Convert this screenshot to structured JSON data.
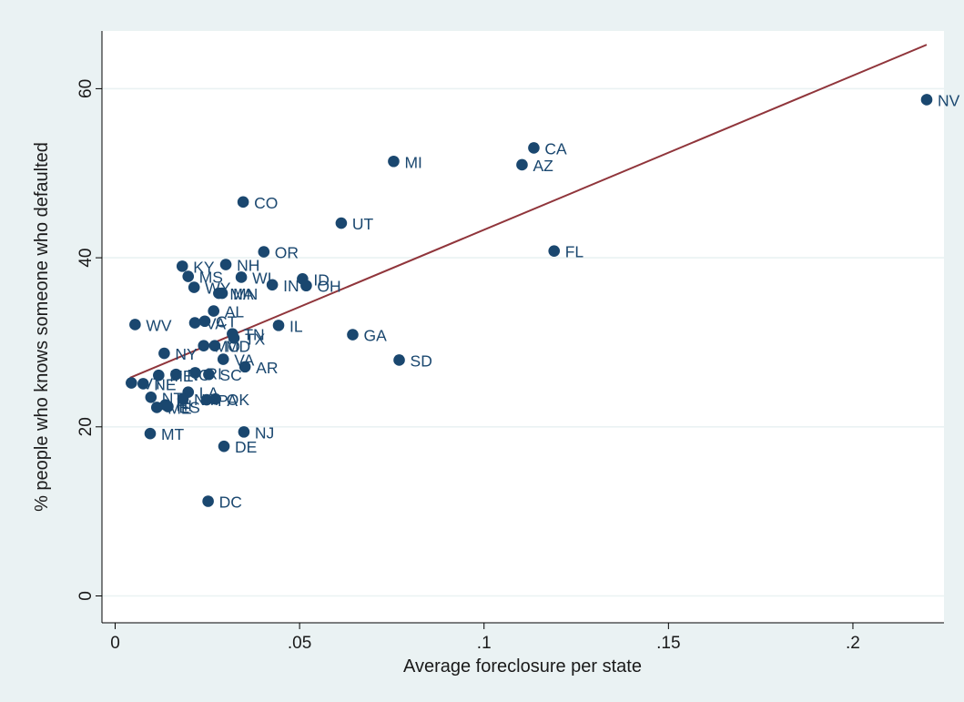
{
  "chart_data": {
    "type": "scatter",
    "xlabel": "Average foreclosure per state",
    "ylabel": "% people who knows someone who defaulted",
    "xlim": [
      0,
      0.22
    ],
    "ylim": [
      0,
      67
    ],
    "x_ticks": [
      0,
      0.05,
      0.1,
      0.15,
      0.2
    ],
    "x_tick_labels": [
      "0",
      ".05",
      ".1",
      ".15",
      ".2"
    ],
    "y_ticks": [
      0,
      20,
      40,
      60
    ],
    "y_tick_labels": [
      "0",
      "20",
      "40",
      "60"
    ],
    "grid": "horizontal",
    "colors": {
      "outer_bg": "#eaf2f3",
      "plot_bg": "#ffffff",
      "grid": "#eaf2f3",
      "marker": "#1a476f",
      "fit_line": "#90353b"
    },
    "points": [
      {
        "label": "NV",
        "x": 0.22,
        "y": 58.7
      },
      {
        "label": "CA",
        "x": 0.1135,
        "y": 53.0
      },
      {
        "label": "AZ",
        "x": 0.1103,
        "y": 51.0
      },
      {
        "label": "MI",
        "x": 0.0755,
        "y": 51.4
      },
      {
        "label": "FL",
        "x": 0.119,
        "y": 40.8
      },
      {
        "label": "CO",
        "x": 0.0347,
        "y": 46.6
      },
      {
        "label": "UT",
        "x": 0.0613,
        "y": 44.1
      },
      {
        "label": "OR",
        "x": 0.0403,
        "y": 40.7
      },
      {
        "label": "KY",
        "x": 0.0182,
        "y": 39.0
      },
      {
        "label": "NH",
        "x": 0.03,
        "y": 39.2
      },
      {
        "label": "MS",
        "x": 0.0198,
        "y": 37.8
      },
      {
        "label": "WI",
        "x": 0.0342,
        "y": 37.7
      },
      {
        "label": "ID",
        "x": 0.0508,
        "y": 37.5
      },
      {
        "label": "IN",
        "x": 0.0426,
        "y": 36.8
      },
      {
        "label": "OH",
        "x": 0.0518,
        "y": 36.7
      },
      {
        "label": "WY",
        "x": 0.0214,
        "y": 36.5
      },
      {
        "label": "MA",
        "x": 0.0281,
        "y": 35.8
      },
      {
        "label": "MN",
        "x": 0.029,
        "y": 35.8
      },
      {
        "label": "AL",
        "x": 0.0267,
        "y": 33.7
      },
      {
        "label": "CT",
        "x": 0.0243,
        "y": 32.5
      },
      {
        "label": "VA",
        "x": 0.0216,
        "y": 32.3
      },
      {
        "label": "WV",
        "x": 0.0054,
        "y": 32.1
      },
      {
        "label": "IL",
        "x": 0.0443,
        "y": 32.0
      },
      {
        "label": "TN",
        "x": 0.0318,
        "y": 31.0
      },
      {
        "label": "TX",
        "x": 0.0322,
        "y": 30.5
      },
      {
        "label": "GA",
        "x": 0.0644,
        "y": 30.9
      },
      {
        "label": "MO",
        "x": 0.024,
        "y": 29.6
      },
      {
        "label": "MD",
        "x": 0.027,
        "y": 29.6
      },
      {
        "label": "NY",
        "x": 0.0133,
        "y": 28.7
      },
      {
        "label": "VA",
        "x": 0.0293,
        "y": 28.0
      },
      {
        "label": "SD",
        "x": 0.077,
        "y": 27.9
      },
      {
        "label": "AR",
        "x": 0.0352,
        "y": 27.1
      },
      {
        "label": "RI",
        "x": 0.0217,
        "y": 26.4
      },
      {
        "label": "NC",
        "x": 0.0165,
        "y": 26.2
      },
      {
        "label": "SC",
        "x": 0.0254,
        "y": 26.2
      },
      {
        "label": "ME",
        "x": 0.0118,
        "y": 26.1
      },
      {
        "label": "VT",
        "x": 0.0044,
        "y": 25.2
      },
      {
        "label": "NE",
        "x": 0.0076,
        "y": 25.1
      },
      {
        "label": "LA",
        "x": 0.0198,
        "y": 24.1
      },
      {
        "label": "NT",
        "x": 0.0097,
        "y": 23.5
      },
      {
        "label": "PA",
        "x": 0.0248,
        "y": 23.2
      },
      {
        "label": "OK",
        "x": 0.0272,
        "y": 23.3
      },
      {
        "label": "NM",
        "x": 0.0184,
        "y": 23.3
      },
      {
        "label": "HI",
        "x": 0.0136,
        "y": 22.6
      },
      {
        "label": "ME",
        "x": 0.0113,
        "y": 22.3
      },
      {
        "label": "ES",
        "x": 0.0143,
        "y": 22.4
      },
      {
        "label": "NJ",
        "x": 0.0349,
        "y": 19.4
      },
      {
        "label": "MT",
        "x": 0.0095,
        "y": 19.2
      },
      {
        "label": "DE",
        "x": 0.0295,
        "y": 17.7
      },
      {
        "label": "DC",
        "x": 0.0252,
        "y": 11.2
      }
    ],
    "fit_line": {
      "x": [
        0.004,
        0.22
      ],
      "y": [
        25.8,
        65.2
      ]
    }
  }
}
